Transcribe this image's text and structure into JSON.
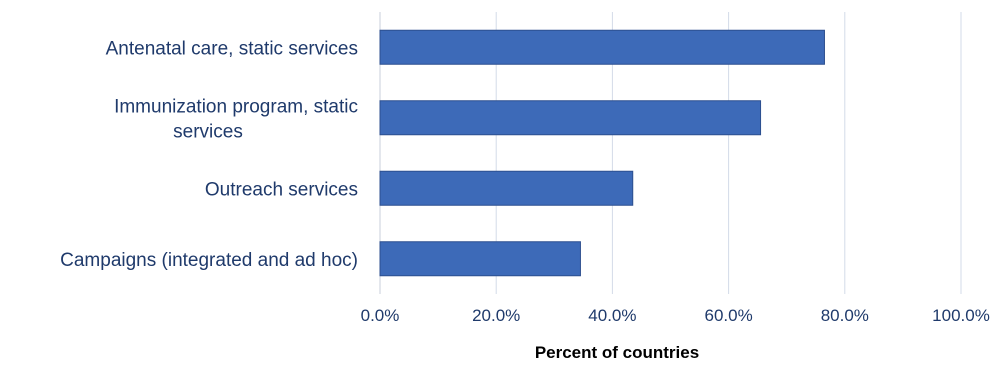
{
  "chart_data": {
    "type": "bar",
    "orientation": "horizontal",
    "categories": [
      [
        "Antenatal care, static services"
      ],
      [
        "Immunization program, static",
        "services"
      ],
      [
        "Outreach services"
      ],
      [
        "Campaigns (integrated and ad hoc)"
      ]
    ],
    "values": [
      0.765,
      0.655,
      0.435,
      0.345
    ],
    "xlim": [
      0,
      1.0
    ],
    "x_ticks": [
      "0.0%",
      "20.0%",
      "40.0%",
      "60.0%",
      "80.0%",
      "100.0%"
    ],
    "xlabel": "Percent of countries",
    "title": "",
    "grid": true,
    "legend": "none",
    "colors": {
      "bar": "#3d6ab8",
      "bar_edge": "#2c4f8f",
      "grid": "#d3dbe8",
      "label": "#1f3a6b"
    }
  }
}
